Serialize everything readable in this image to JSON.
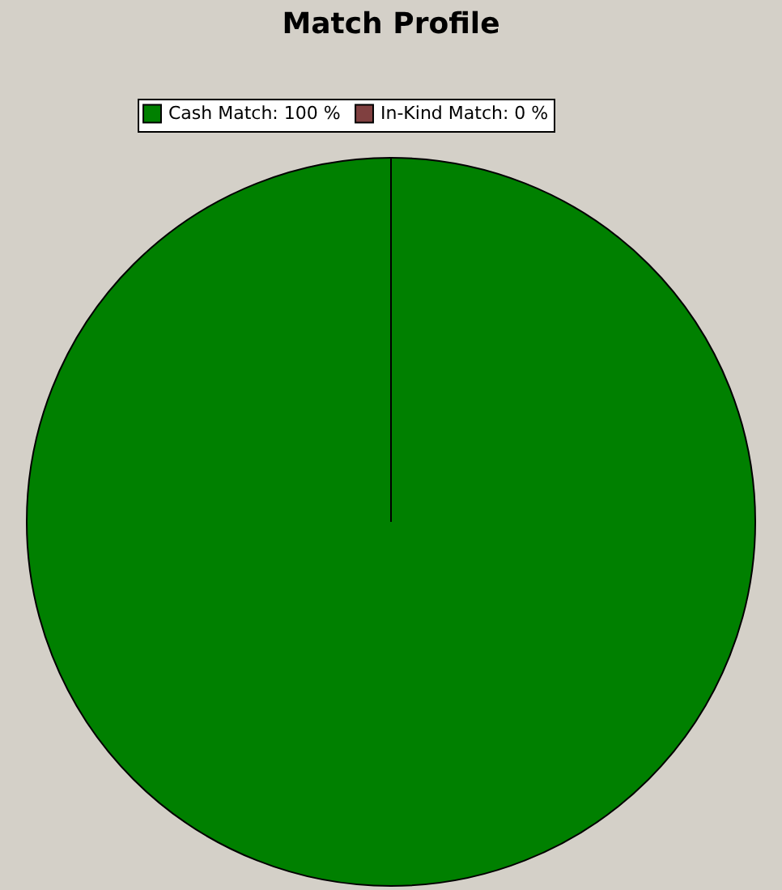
{
  "chart_data": {
    "type": "pie",
    "title": "Match Profile",
    "categories": [
      "Cash Match: 100 %",
      "In-Kind Match: 0 %"
    ],
    "values": [
      100,
      0
    ],
    "colors": [
      "#008000",
      "#804040"
    ],
    "legend": "top"
  }
}
